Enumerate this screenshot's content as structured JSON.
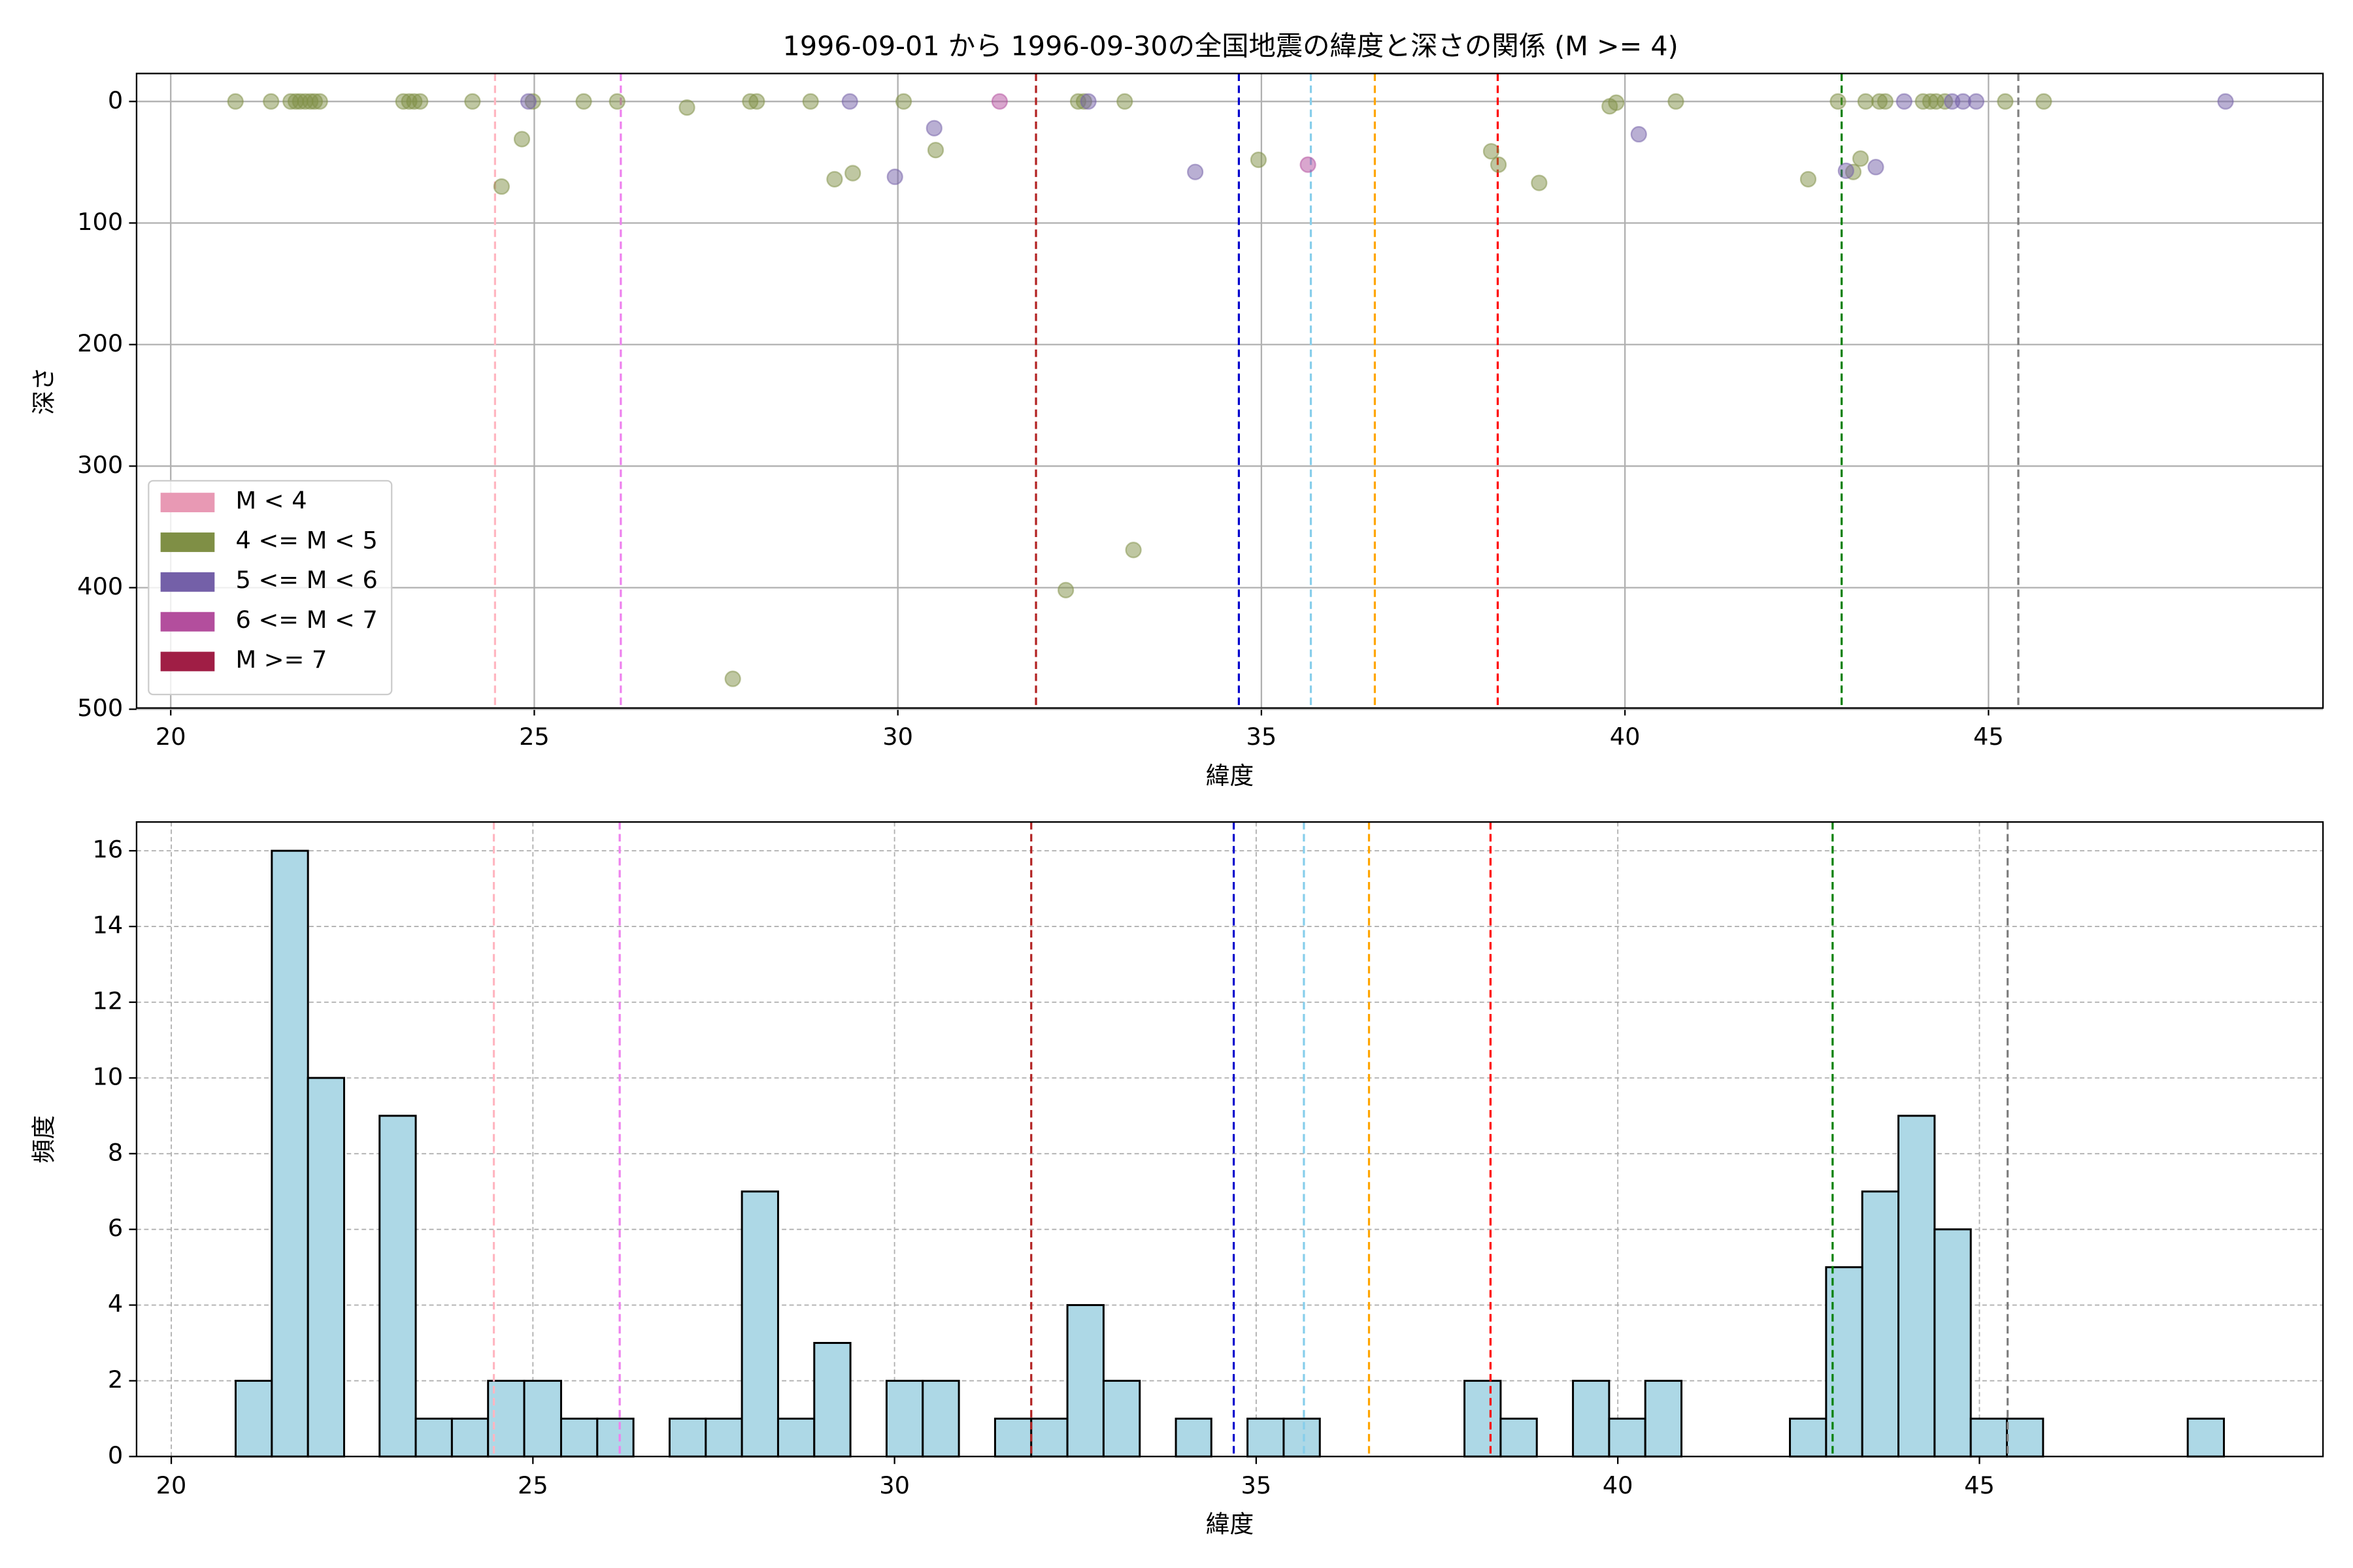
{
  "chart_data": [
    {
      "type": "scatter",
      "title": "1996-09-01 から 1996-09-30の全国地震の緯度と深さの関係 (M >= 4)",
      "x_label": "緯度",
      "y_label": "深さ",
      "xlim": [
        19.53,
        49.6
      ],
      "ylim": [
        499,
        -23
      ],
      "xticks": [
        20,
        25,
        30,
        35,
        40,
        45
      ],
      "yticks": [
        0,
        100,
        200,
        300,
        400,
        500
      ],
      "grid": true,
      "grid_style": "solid",
      "legend": "lower left",
      "alpha": 0.5,
      "series": [
        {
          "name": "M < 4",
          "color": "#e899b4",
          "x": [],
          "values": []
        },
        {
          "name": "4 <= M < 5",
          "color": "#7f8f45",
          "x": [
            20.89,
            21.38,
            21.65,
            21.72,
            21.78,
            21.85,
            21.92,
            21.98,
            22.05,
            23.2,
            23.28,
            23.35,
            23.43,
            24.15,
            24.55,
            24.83,
            24.98,
            25.68,
            26.14,
            27.1,
            27.73,
            27.97,
            28.06,
            28.8,
            29.13,
            29.38,
            30.08,
            30.52,
            32.31,
            32.48,
            32.56,
            33.12,
            33.24,
            34.96,
            38.16,
            38.26,
            38.82,
            39.79,
            39.88,
            40.7,
            42.52,
            42.93,
            43.14,
            43.24,
            43.31,
            43.5,
            43.58,
            44.1,
            44.2,
            44.28,
            44.4,
            45.23,
            45.76
          ],
          "values": [
            0,
            0,
            0,
            0,
            0,
            0,
            0,
            0,
            0,
            0,
            0,
            0,
            0,
            0,
            70,
            31,
            0,
            0,
            0,
            5,
            475,
            0,
            0,
            0,
            64,
            59,
            0,
            40,
            402,
            0,
            0,
            0,
            369,
            48,
            41,
            52,
            67,
            4,
            1,
            0,
            64,
            0,
            58,
            47,
            0,
            0,
            0,
            0,
            0,
            0,
            0,
            0,
            0
          ]
        },
        {
          "name": "5 <= M < 6",
          "color": "#7460a8",
          "x": [
            24.92,
            29.34,
            29.96,
            30.5,
            32.62,
            34.09,
            40.19,
            43.04,
            43.45,
            43.84,
            44.5,
            44.65,
            44.83,
            48.26
          ],
          "values": [
            0,
            0,
            62,
            22,
            0,
            58,
            27,
            57,
            54,
            0,
            0,
            0,
            0,
            0
          ]
        },
        {
          "name": "6 <= M < 7",
          "color": "#b34e9d",
          "x": [
            31.4,
            35.64
          ],
          "values": [
            0,
            52
          ]
        },
        {
          "name": "M >= 7",
          "color": "#a01e45",
          "x": [],
          "values": []
        }
      ],
      "vlines": [
        {
          "x": 24.46,
          "color": "#ffb6c1"
        },
        {
          "x": 26.19,
          "color": "#ee82ee"
        },
        {
          "x": 31.9,
          "color": "#b22222"
        },
        {
          "x": 34.69,
          "color": "#0000cd"
        },
        {
          "x": 35.68,
          "color": "#87ceeb"
        },
        {
          "x": 36.56,
          "color": "#ffa500"
        },
        {
          "x": 38.25,
          "color": "#ff0000"
        },
        {
          "x": 42.98,
          "color": "#008000"
        },
        {
          "x": 45.41,
          "color": "#808080"
        }
      ]
    },
    {
      "type": "histogram",
      "x_label": "緯度",
      "y_label": "頻度",
      "xlim": [
        19.52,
        49.75
      ],
      "ylim": [
        0,
        16.76
      ],
      "xticks": [
        20,
        25,
        30,
        35,
        40,
        45
      ],
      "yticks": [
        0,
        2,
        4,
        6,
        8,
        10,
        12,
        14,
        16
      ],
      "grid": true,
      "grid_style": "dashed",
      "color": "#add8e6",
      "bins": [
        20.89,
        21.39,
        21.89,
        22.39,
        22.88,
        23.38,
        23.88,
        24.38,
        24.88,
        25.39,
        25.89,
        26.39,
        26.89,
        27.39,
        27.89,
        28.39,
        28.89,
        29.39,
        29.89,
        30.39,
        30.89,
        31.39,
        31.89,
        32.39,
        32.89,
        33.39,
        33.89,
        34.38,
        34.88,
        35.38,
        35.88,
        36.38,
        36.88,
        37.38,
        37.88,
        38.38,
        38.88,
        39.38,
        39.88,
        40.38,
        40.88,
        41.38,
        41.88,
        42.38,
        42.88,
        43.38,
        43.88,
        44.38,
        44.88,
        45.38,
        45.88,
        46.38,
        46.88,
        47.38,
        47.88,
        48.38
      ],
      "values": [
        2,
        16,
        10,
        0,
        9,
        1,
        1,
        2,
        2,
        1,
        1,
        0,
        1,
        1,
        7,
        1,
        3,
        0,
        2,
        2,
        0,
        1,
        1,
        4,
        2,
        0,
        1,
        0,
        1,
        1,
        0,
        0,
        0,
        0,
        2,
        1,
        0,
        2,
        1,
        2,
        0,
        0,
        0,
        1,
        5,
        7,
        9,
        6,
        1,
        1,
        0,
        0,
        0,
        0,
        1
      ],
      "vlines": [
        {
          "x": 24.46,
          "color": "#ffb6c1"
        },
        {
          "x": 26.2,
          "color": "#ee82ee"
        },
        {
          "x": 31.89,
          "color": "#b22222"
        },
        {
          "x": 34.69,
          "color": "#0000cd"
        },
        {
          "x": 35.66,
          "color": "#87ceeb"
        },
        {
          "x": 36.56,
          "color": "#ffa500"
        },
        {
          "x": 38.24,
          "color": "#ff0000"
        },
        {
          "x": 42.97,
          "color": "#008000"
        },
        {
          "x": 45.39,
          "color": "#808080"
        }
      ]
    }
  ]
}
